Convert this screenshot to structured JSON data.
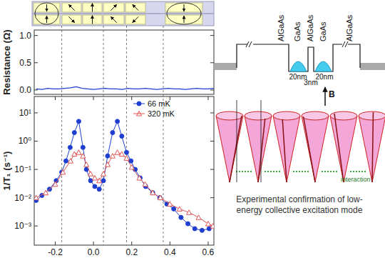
{
  "chart_data": [
    {
      "type": "line",
      "ylabel": "Resistance (Ω)",
      "xlim": [
        -0.31,
        0.63
      ],
      "ylim": [
        -0.08,
        1.1
      ],
      "yticks": [
        {
          "value": 0,
          "label": "0.0"
        },
        {
          "value": 0.5,
          "label": "0.5"
        },
        {
          "value": 1,
          "label": "1.0"
        }
      ],
      "tick_labels": "y",
      "series": [
        {
          "color": "#1f3fd0",
          "x": [
            -0.3,
            -0.27,
            -0.24,
            -0.21,
            -0.18,
            -0.15,
            -0.12,
            -0.09,
            -0.06,
            -0.03,
            0,
            0.03,
            0.06,
            0.09,
            0.12,
            0.15,
            0.18,
            0.21,
            0.24,
            0.27,
            0.3,
            0.33,
            0.36,
            0.39,
            0.42,
            0.45,
            0.48,
            0.51,
            0.54,
            0.57,
            0.6,
            0.63
          ],
          "values": [
            0.02,
            0.01,
            0.03,
            0.02,
            0.02,
            0.03,
            0.04,
            0.06,
            0.03,
            0.02,
            0.01,
            0.02,
            0.03,
            0.02,
            0.02,
            0.01,
            0.03,
            0.02,
            0.02,
            0.03,
            0.02,
            0.01,
            0.02,
            0.03,
            0.02,
            0.02,
            0.01,
            0.02,
            0.03,
            0.02,
            0.02,
            0.03
          ]
        }
      ]
    },
    {
      "type": "line",
      "ylabel": "1/T₁ (s⁻¹)",
      "log": "y",
      "xlim": [
        -0.31,
        0.63
      ],
      "ylim": [
        0.00021,
        38
      ],
      "xticks": [
        {
          "value": -0.2,
          "label": "-0.2"
        },
        {
          "value": 0,
          "label": "0.0"
        },
        {
          "value": 0.2,
          "label": "0.2"
        },
        {
          "value": 0.4,
          "label": "0.4"
        },
        {
          "value": 0.6,
          "label": "0.6"
        }
      ],
      "yticks": [
        {
          "value": 10,
          "label": "10¹"
        },
        {
          "value": 1,
          "label": "10⁰"
        },
        {
          "value": 0.1,
          "label": "10⁻¹"
        },
        {
          "value": 0.01,
          "label": "10⁻²"
        },
        {
          "value": 0.001,
          "label": "10⁻³"
        }
      ],
      "legend": "upper right",
      "vlines": [
        -0.166,
        0.052,
        0.173,
        0.365
      ],
      "series": [
        {
          "name": "66 mK",
          "color": "#1f3fd0",
          "marker": "circle",
          "x": [
            -0.3,
            -0.27,
            -0.23,
            -0.195,
            -0.166,
            -0.144,
            -0.122,
            -0.1,
            -0.077,
            -0.055,
            -0.037,
            -0.015,
            0.007,
            0.03,
            0.052,
            0.074,
            0.1,
            0.125,
            0.148,
            0.173,
            0.196,
            0.218,
            0.244,
            0.273,
            0.31,
            0.347,
            0.384,
            0.42,
            0.458,
            0.494,
            0.53,
            0.568,
            0.605
          ],
          "values": [
            0.008,
            0.012,
            0.02,
            0.04,
            0.08,
            0.2,
            0.6,
            2,
            5,
            0.6,
            0.1,
            0.04,
            0.025,
            0.02,
            0.04,
            0.3,
            2,
            5,
            1.5,
            0.4,
            0.2,
            0.1,
            0.05,
            0.025,
            0.015,
            0.01,
            0.006,
            0.004,
            0.002,
            0.0012,
            0.0008,
            0.0007,
            0.0008
          ]
        },
        {
          "name": "320 mK",
          "color": "#e05555",
          "marker": "triangle-open",
          "x": [
            -0.3,
            -0.25,
            -0.2,
            -0.16,
            -0.12,
            -0.1,
            -0.077,
            -0.055,
            -0.037,
            -0.015,
            0.007,
            0.03,
            0.052,
            0.074,
            0.1,
            0.125,
            0.148,
            0.173,
            0.2,
            0.24,
            0.27,
            0.31,
            0.35,
            0.4,
            0.45,
            0.5,
            0.55,
            0.6,
            0.625
          ],
          "values": [
            0.01,
            0.015,
            0.03,
            0.08,
            0.2,
            0.35,
            0.4,
            0.3,
            0.15,
            0.07,
            0.05,
            0.04,
            0.07,
            0.15,
            0.3,
            0.4,
            0.35,
            0.25,
            0.12,
            0.05,
            0.03,
            0.015,
            0.01,
            0.006,
            0.004,
            0.003,
            0.002,
            0.0012,
            0.001
          ]
        }
      ]
    }
  ],
  "diagram": {
    "layers": [
      "AlGaAs",
      "GaAs",
      "AlGaAs",
      "GaAs",
      "AlGaAs"
    ],
    "widths": [
      "20nm",
      "3nm",
      "20nm"
    ],
    "field_label": "B",
    "interaction_label": "interaction",
    "caption": [
      "Experimental confirmation of low-",
      "energy collective excitation mode"
    ]
  }
}
